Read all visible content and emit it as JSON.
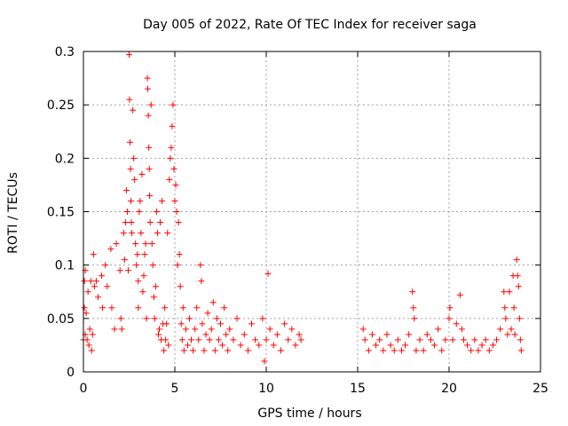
{
  "chart_data": {
    "type": "scatter",
    "title": "Day 005 of 2022, Rate Of TEC Index for receiver saga",
    "xlabel": "GPS time / hours",
    "ylabel": "ROTI / TECUs",
    "xlim": [
      0,
      25
    ],
    "ylim": [
      0,
      0.3
    ],
    "x_ticks": [
      0,
      5,
      10,
      15,
      20,
      25
    ],
    "y_ticks": [
      0,
      0.05,
      0.1,
      0.15,
      0.2,
      0.25,
      0.3
    ],
    "x_tick_labels": [
      "0",
      "5",
      "10",
      "15",
      "20",
      "25"
    ],
    "y_tick_labels": [
      "0",
      "0.05",
      "0.1",
      "0.15",
      "0.2",
      "0.25",
      "0.3"
    ],
    "grid": true,
    "marker": "+",
    "marker_color": "#ff0000",
    "series": [
      {
        "name": "ROTI",
        "points": [
          [
            0.0,
            0.03
          ],
          [
            0.05,
            0.085
          ],
          [
            0.05,
            0.06
          ],
          [
            0.1,
            0.035
          ],
          [
            0.1,
            0.095
          ],
          [
            0.15,
            0.055
          ],
          [
            0.2,
            0.03
          ],
          [
            0.25,
            0.075
          ],
          [
            0.3,
            0.025
          ],
          [
            0.35,
            0.04
          ],
          [
            0.4,
            0.085
          ],
          [
            0.45,
            0.02
          ],
          [
            0.5,
            0.035
          ],
          [
            0.55,
            0.11
          ],
          [
            0.6,
            0.08
          ],
          [
            0.7,
            0.085
          ],
          [
            0.8,
            0.07
          ],
          [
            1.0,
            0.09
          ],
          [
            1.05,
            0.06
          ],
          [
            1.2,
            0.1
          ],
          [
            1.3,
            0.08
          ],
          [
            1.5,
            0.115
          ],
          [
            1.55,
            0.06
          ],
          [
            1.7,
            0.04
          ],
          [
            1.8,
            0.12
          ],
          [
            2.0,
            0.095
          ],
          [
            2.05,
            0.05
          ],
          [
            2.1,
            0.04
          ],
          [
            2.2,
            0.13
          ],
          [
            2.25,
            0.105
          ],
          [
            2.3,
            0.14
          ],
          [
            2.35,
            0.17
          ],
          [
            2.4,
            0.15
          ],
          [
            2.45,
            0.095
          ],
          [
            2.5,
            0.297
          ],
          [
            2.52,
            0.255
          ],
          [
            2.55,
            0.215
          ],
          [
            2.58,
            0.19
          ],
          [
            2.6,
            0.16
          ],
          [
            2.62,
            0.14
          ],
          [
            2.65,
            0.13
          ],
          [
            2.7,
            0.245
          ],
          [
            2.75,
            0.2
          ],
          [
            2.8,
            0.18
          ],
          [
            2.85,
            0.12
          ],
          [
            2.9,
            0.1
          ],
          [
            2.95,
            0.11
          ],
          [
            3.0,
            0.085
          ],
          [
            3.0,
            0.06
          ],
          [
            3.05,
            0.15
          ],
          [
            3.1,
            0.16
          ],
          [
            3.15,
            0.13
          ],
          [
            3.2,
            0.185
          ],
          [
            3.25,
            0.075
          ],
          [
            3.3,
            0.09
          ],
          [
            3.35,
            0.11
          ],
          [
            3.4,
            0.12
          ],
          [
            3.45,
            0.05
          ],
          [
            3.5,
            0.275
          ],
          [
            3.52,
            0.265
          ],
          [
            3.55,
            0.24
          ],
          [
            3.58,
            0.21
          ],
          [
            3.6,
            0.19
          ],
          [
            3.62,
            0.165
          ],
          [
            3.65,
            0.14
          ],
          [
            3.7,
            0.25
          ],
          [
            3.75,
            0.12
          ],
          [
            3.8,
            0.1
          ],
          [
            3.85,
            0.07
          ],
          [
            3.9,
            0.05
          ],
          [
            3.95,
            0.08
          ],
          [
            4.0,
            0.15
          ],
          [
            4.05,
            0.13
          ],
          [
            4.1,
            0.035
          ],
          [
            4.15,
            0.04
          ],
          [
            4.2,
            0.14
          ],
          [
            4.25,
            0.03
          ],
          [
            4.3,
            0.16
          ],
          [
            4.35,
            0.045
          ],
          [
            4.4,
            0.02
          ],
          [
            4.45,
            0.06
          ],
          [
            4.5,
            0.03
          ],
          [
            4.55,
            0.045
          ],
          [
            4.6,
            0.13
          ],
          [
            4.65,
            0.025
          ],
          [
            4.7,
            0.18
          ],
          [
            4.75,
            0.2
          ],
          [
            4.8,
            0.21
          ],
          [
            4.85,
            0.23
          ],
          [
            4.9,
            0.25
          ],
          [
            4.95,
            0.19
          ],
          [
            5.0,
            0.16
          ],
          [
            5.05,
            0.175
          ],
          [
            5.1,
            0.15
          ],
          [
            5.15,
            0.1
          ],
          [
            5.2,
            0.14
          ],
          [
            5.25,
            0.11
          ],
          [
            5.3,
            0.08
          ],
          [
            5.35,
            0.045
          ],
          [
            5.4,
            0.03
          ],
          [
            5.45,
            0.06
          ],
          [
            5.5,
            0.02
          ],
          [
            5.6,
            0.04
          ],
          [
            5.7,
            0.025
          ],
          [
            5.8,
            0.05
          ],
          [
            5.9,
            0.03
          ],
          [
            6.0,
            0.02
          ],
          [
            6.1,
            0.04
          ],
          [
            6.2,
            0.06
          ],
          [
            6.3,
            0.03
          ],
          [
            6.4,
            0.1
          ],
          [
            6.45,
            0.085
          ],
          [
            6.5,
            0.045
          ],
          [
            6.6,
            0.02
          ],
          [
            6.7,
            0.035
          ],
          [
            6.8,
            0.055
          ],
          [
            6.9,
            0.03
          ],
          [
            7.0,
            0.04
          ],
          [
            7.1,
            0.065
          ],
          [
            7.2,
            0.02
          ],
          [
            7.3,
            0.05
          ],
          [
            7.4,
            0.03
          ],
          [
            7.5,
            0.045
          ],
          [
            7.6,
            0.025
          ],
          [
            7.7,
            0.06
          ],
          [
            7.8,
            0.035
          ],
          [
            7.9,
            0.02
          ],
          [
            8.0,
            0.04
          ],
          [
            8.2,
            0.03
          ],
          [
            8.4,
            0.05
          ],
          [
            8.6,
            0.025
          ],
          [
            8.8,
            0.035
          ],
          [
            9.0,
            0.02
          ],
          [
            9.2,
            0.045
          ],
          [
            9.4,
            0.03
          ],
          [
            9.6,
            0.025
          ],
          [
            9.8,
            0.05
          ],
          [
            9.9,
            0.01
          ],
          [
            10.0,
            0.03
          ],
          [
            10.1,
            0.092
          ],
          [
            10.2,
            0.04
          ],
          [
            10.4,
            0.025
          ],
          [
            10.6,
            0.035
          ],
          [
            10.8,
            0.02
          ],
          [
            11.0,
            0.045
          ],
          [
            11.2,
            0.03
          ],
          [
            11.4,
            0.04
          ],
          [
            11.6,
            0.025
          ],
          [
            11.8,
            0.035
          ],
          [
            11.9,
            0.03
          ],
          [
            15.3,
            0.04
          ],
          [
            15.4,
            0.03
          ],
          [
            15.6,
            0.02
          ],
          [
            15.8,
            0.035
          ],
          [
            16.0,
            0.025
          ],
          [
            16.2,
            0.03
          ],
          [
            16.4,
            0.02
          ],
          [
            16.6,
            0.035
          ],
          [
            16.8,
            0.025
          ],
          [
            17.0,
            0.02
          ],
          [
            17.2,
            0.03
          ],
          [
            17.4,
            0.02
          ],
          [
            17.6,
            0.025
          ],
          [
            17.8,
            0.035
          ],
          [
            18.0,
            0.075
          ],
          [
            18.05,
            0.06
          ],
          [
            18.1,
            0.05
          ],
          [
            18.2,
            0.02
          ],
          [
            18.4,
            0.03
          ],
          [
            18.6,
            0.02
          ],
          [
            18.8,
            0.035
          ],
          [
            19.0,
            0.03
          ],
          [
            19.2,
            0.025
          ],
          [
            19.4,
            0.04
          ],
          [
            19.6,
            0.02
          ],
          [
            19.8,
            0.03
          ],
          [
            20.0,
            0.05
          ],
          [
            20.05,
            0.06
          ],
          [
            20.2,
            0.03
          ],
          [
            20.4,
            0.045
          ],
          [
            20.6,
            0.072
          ],
          [
            20.7,
            0.04
          ],
          [
            20.8,
            0.03
          ],
          [
            21.0,
            0.025
          ],
          [
            21.2,
            0.02
          ],
          [
            21.4,
            0.03
          ],
          [
            21.6,
            0.02
          ],
          [
            21.8,
            0.025
          ],
          [
            22.0,
            0.03
          ],
          [
            22.2,
            0.02
          ],
          [
            22.4,
            0.025
          ],
          [
            22.6,
            0.03
          ],
          [
            22.8,
            0.04
          ],
          [
            23.0,
            0.075
          ],
          [
            23.05,
            0.06
          ],
          [
            23.1,
            0.05
          ],
          [
            23.2,
            0.035
          ],
          [
            23.3,
            0.075
          ],
          [
            23.4,
            0.04
          ],
          [
            23.5,
            0.09
          ],
          [
            23.55,
            0.06
          ],
          [
            23.6,
            0.035
          ],
          [
            23.7,
            0.105
          ],
          [
            23.75,
            0.09
          ],
          [
            23.8,
            0.08
          ],
          [
            23.85,
            0.05
          ],
          [
            23.9,
            0.03
          ],
          [
            23.95,
            0.02
          ]
        ]
      }
    ]
  }
}
